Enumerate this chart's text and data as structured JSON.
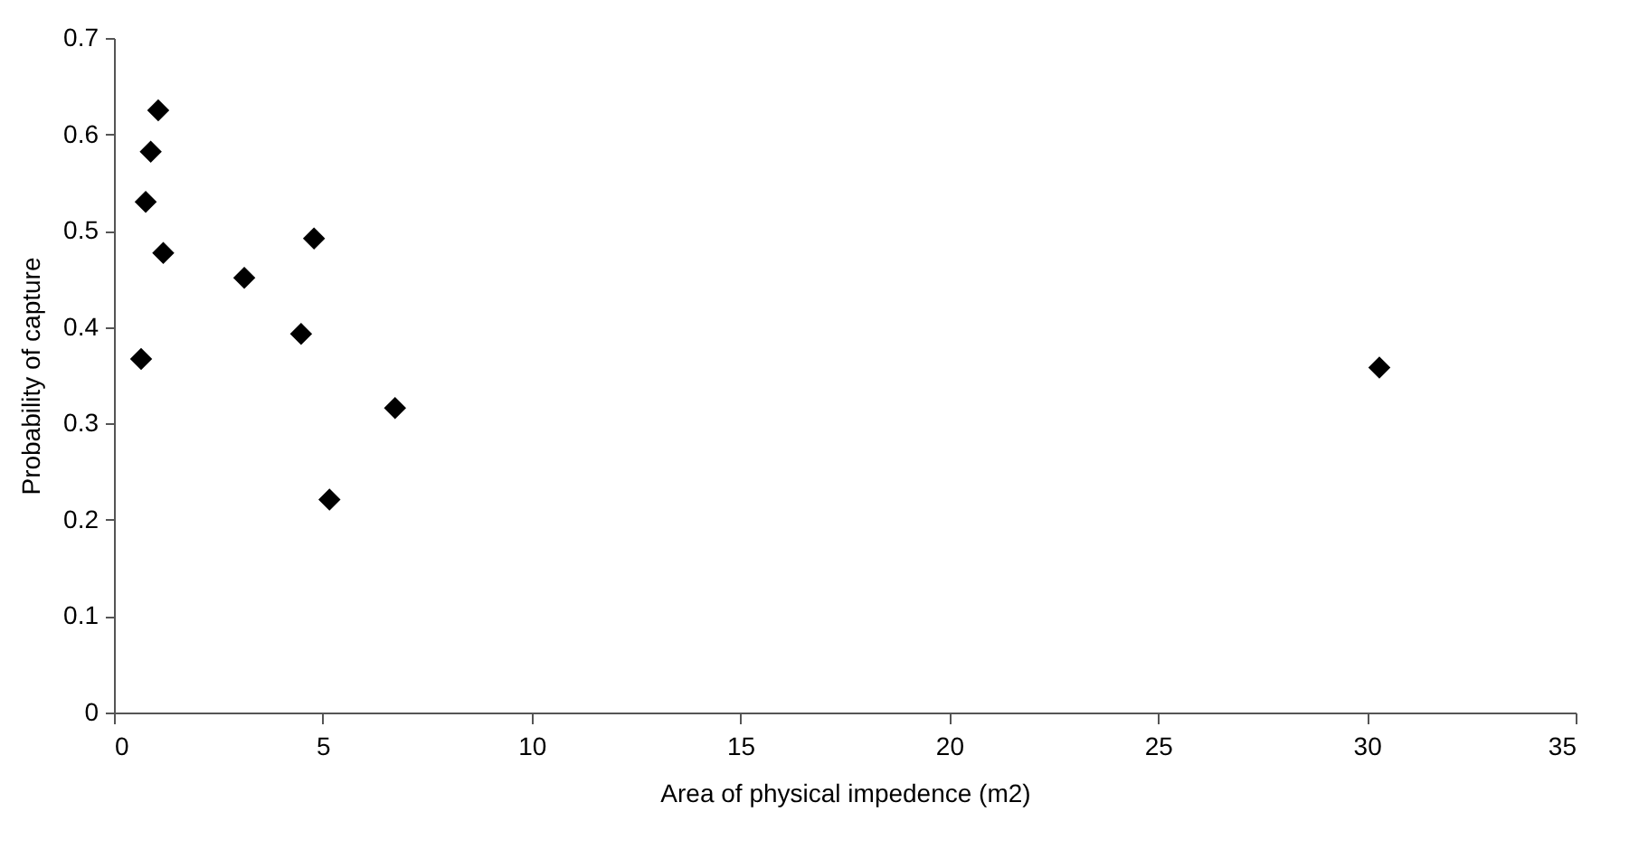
{
  "chart_data": {
    "type": "scatter",
    "xlabel": "Area of physical impedence (m2)",
    "ylabel": "Probability of capture",
    "x": [
      1.06,
      0.88,
      0.76,
      1.18,
      0.65,
      3.12,
      4.79,
      4.48,
      6.73,
      5.16,
      30.3
    ],
    "values": [
      0.625,
      0.582,
      0.53,
      0.477,
      0.367,
      0.451,
      0.492,
      0.393,
      0.316,
      0.221,
      0.358
    ],
    "color": "#000000",
    "marker": "diamond",
    "grid": false,
    "xlim": [
      0,
      35
    ],
    "xticks": [
      0,
      5,
      10,
      15,
      20,
      25,
      30,
      35
    ],
    "ylim": [
      0,
      0.7
    ],
    "yticks": [
      0,
      0.1,
      0.2,
      0.3,
      0.4,
      0.5,
      0.6,
      0.7
    ]
  }
}
